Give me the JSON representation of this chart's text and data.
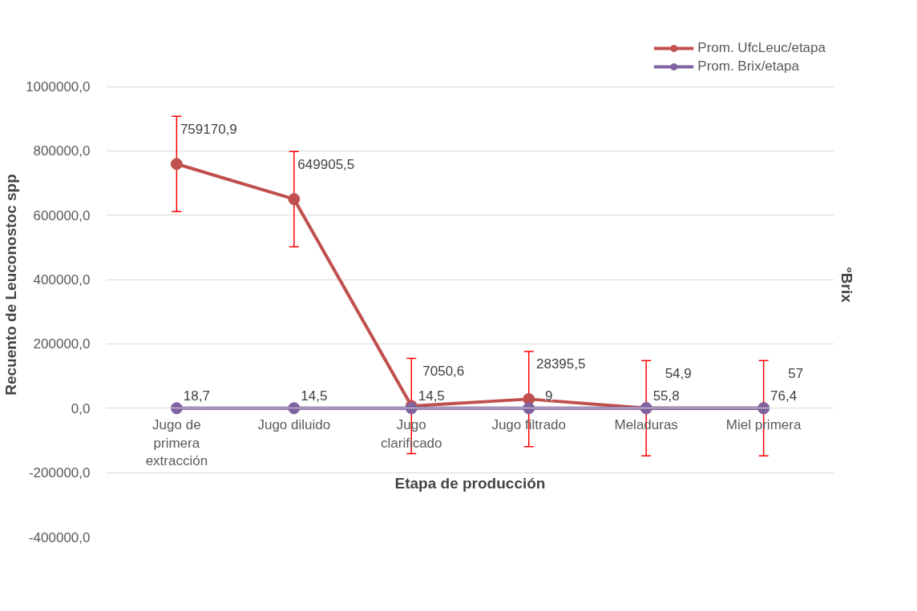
{
  "chart_data": {
    "type": "line",
    "xlabel": "Etapa de producción",
    "ylabel": "Recuento de Leuconostoc spp",
    "y2label": "°Brix",
    "categories": [
      "Jugo de primera extracción",
      "Jugo diluido",
      "Jugo clarificado",
      "Jugo filtrado",
      "Meladuras",
      "Miel primera"
    ],
    "series": [
      {
        "name": "Prom. UfcLeuc/etapa",
        "color": "#c0504d",
        "values": [
          759170.9,
          649905.5,
          7050.6,
          28395.5,
          54.9,
          57
        ],
        "value_labels": [
          "759170,9",
          "649905,5",
          "7050,6",
          "28395,5",
          "54,9",
          "57"
        ],
        "errors": [
          148000,
          148000,
          148000,
          148000,
          148000,
          148000
        ]
      },
      {
        "name": "Prom. Brix/etapa",
        "color": "#8064a2",
        "values": [
          18.7,
          14.5,
          14.5,
          9,
          55.8,
          76.4
        ],
        "value_labels": [
          "18,7",
          "14,5",
          "14,5",
          "9",
          "55,8",
          "76,4"
        ]
      }
    ],
    "ylim": [
      -400000,
      1000000
    ],
    "yticks": [
      {
        "value": -400000,
        "label": "-400000,0"
      },
      {
        "value": -200000,
        "label": "-200000,0"
      },
      {
        "value": 0,
        "label": "0,0"
      },
      {
        "value": 200000,
        "label": "200000,0"
      },
      {
        "value": 400000,
        "label": "400000,0"
      },
      {
        "value": 600000,
        "label": "600000,0"
      },
      {
        "value": 800000,
        "label": "800000,0"
      },
      {
        "value": 1000000,
        "label": "1000000,0"
      }
    ],
    "grid": "y",
    "legend": "top right",
    "marker": "circle",
    "line_style": "solid"
  }
}
